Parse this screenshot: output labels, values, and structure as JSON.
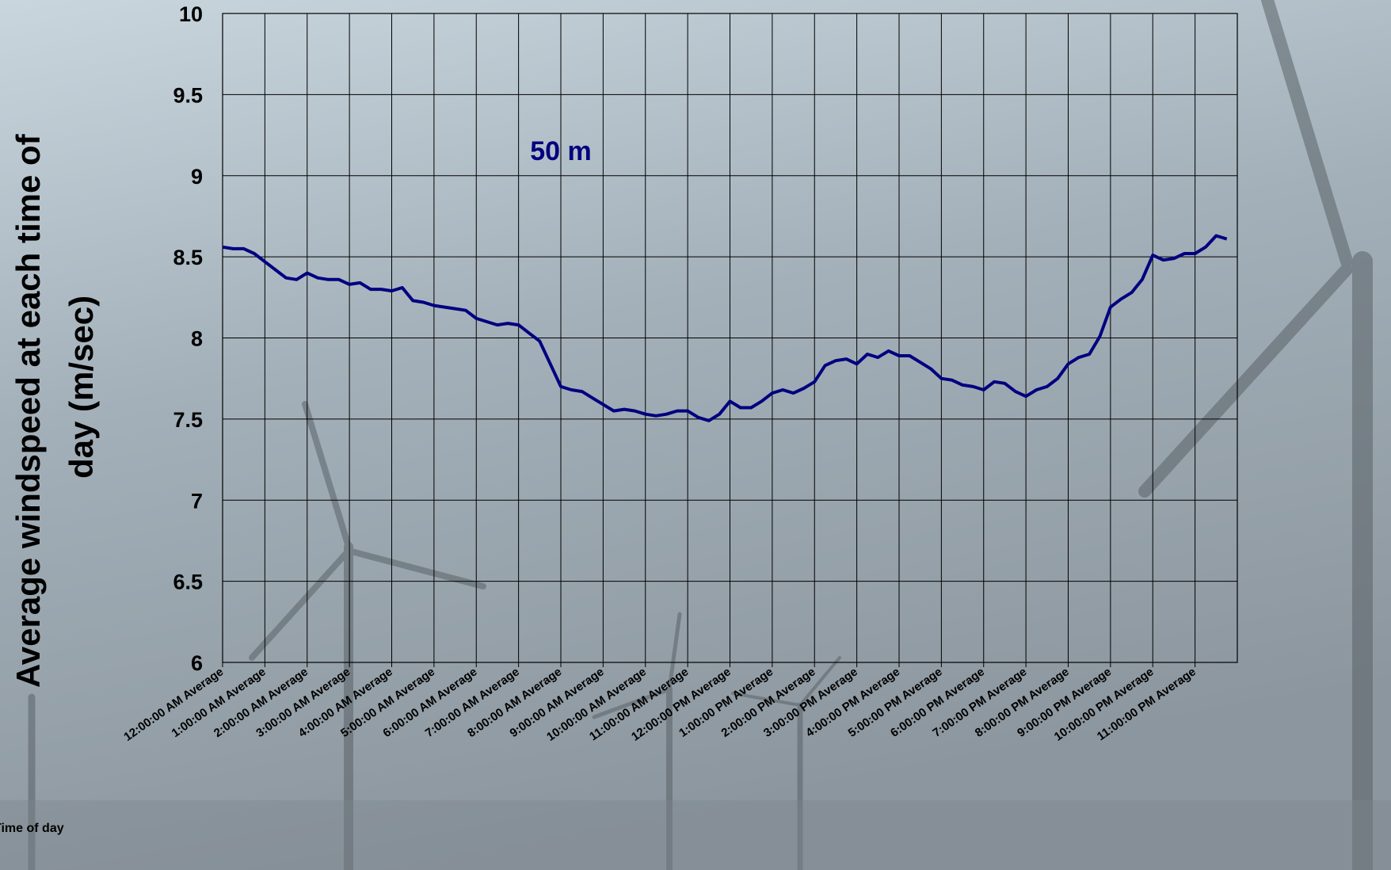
{
  "chart_data": {
    "type": "line",
    "annotation": "50 m",
    "ylabel": [
      "Average windspeed at each time of",
      "day (m/sec)"
    ],
    "xlabel": "Time of day",
    "xlim": [
      0,
      24
    ],
    "ylim": [
      6,
      10
    ],
    "yticks": [
      6,
      6.5,
      7,
      7.5,
      8,
      8.5,
      9,
      9.5,
      10
    ],
    "xticks": [
      {
        "value": 0,
        "label": "12:00:00 AM Average"
      },
      {
        "value": 1,
        "label": "1:00:00 AM Average"
      },
      {
        "value": 2,
        "label": "2:00:00 AM Average"
      },
      {
        "value": 3,
        "label": "3:00:00 AM Average"
      },
      {
        "value": 4,
        "label": "4:00:00 AM Average"
      },
      {
        "value": 5,
        "label": "5:00:00 AM Average"
      },
      {
        "value": 6,
        "label": "6:00:00 AM Average"
      },
      {
        "value": 7,
        "label": "7:00:00 AM Average"
      },
      {
        "value": 8,
        "label": "8:00:00 AM Average"
      },
      {
        "value": 9,
        "label": "9:00:00 AM Average"
      },
      {
        "value": 10,
        "label": "10:00:00 AM Average"
      },
      {
        "value": 11,
        "label": "11:00:00 AM Average"
      },
      {
        "value": 12,
        "label": "12:00:00 PM Average"
      },
      {
        "value": 13,
        "label": "1:00:00 PM Average"
      },
      {
        "value": 14,
        "label": "2:00:00 PM Average"
      },
      {
        "value": 15,
        "label": "3:00:00 PM Average"
      },
      {
        "value": 16,
        "label": "4:00:00 PM Average"
      },
      {
        "value": 17,
        "label": "5:00:00 PM Average"
      },
      {
        "value": 18,
        "label": "6:00:00 PM Average"
      },
      {
        "value": 19,
        "label": "7:00:00 PM Average"
      },
      {
        "value": 20,
        "label": "8:00:00 PM Average"
      },
      {
        "value": 21,
        "label": "9:00:00 PM Average"
      },
      {
        "value": 22,
        "label": "10:00:00 PM Average"
      },
      {
        "value": 23,
        "label": "11:00:00 PM Average"
      }
    ],
    "grid": true,
    "x": [
      0,
      0.25,
      0.5,
      0.75,
      1,
      1.25,
      1.5,
      1.75,
      2,
      2.25,
      2.5,
      2.75,
      3,
      3.25,
      3.5,
      3.75,
      4,
      4.25,
      4.5,
      4.75,
      5,
      5.25,
      5.5,
      5.75,
      6,
      6.25,
      6.5,
      6.75,
      7,
      7.25,
      7.5,
      7.75,
      8,
      8.25,
      8.5,
      8.75,
      9,
      9.25,
      9.5,
      9.75,
      10,
      10.25,
      10.5,
      10.75,
      11,
      11.25,
      11.5,
      11.75,
      12,
      12.25,
      12.5,
      12.75,
      13,
      13.25,
      13.5,
      13.75,
      14,
      14.25,
      14.5,
      14.75,
      15,
      15.25,
      15.5,
      15.75,
      16,
      16.25,
      16.5,
      16.75,
      17,
      17.25,
      17.5,
      17.75,
      18,
      18.25,
      18.5,
      18.75,
      19,
      19.25,
      19.5,
      19.75,
      20,
      20.25,
      20.5,
      20.75,
      21,
      21.25,
      21.5,
      21.75,
      22,
      22.25,
      22.5,
      22.75,
      23,
      23.25,
      23.5,
      23.75
    ],
    "series": [
      {
        "color": "#000080",
        "values": [
          8.56,
          8.55,
          8.55,
          8.52,
          8.47,
          8.42,
          8.37,
          8.36,
          8.4,
          8.37,
          8.36,
          8.36,
          8.33,
          8.34,
          8.3,
          8.3,
          8.29,
          8.31,
          8.23,
          8.22,
          8.2,
          8.19,
          8.18,
          8.17,
          8.12,
          8.1,
          8.08,
          8.09,
          8.08,
          8.03,
          7.98,
          7.84,
          7.7,
          7.68,
          7.67,
          7.63,
          7.59,
          7.55,
          7.56,
          7.55,
          7.53,
          7.52,
          7.53,
          7.55,
          7.55,
          7.51,
          7.49,
          7.53,
          7.61,
          7.57,
          7.57,
          7.61,
          7.66,
          7.68,
          7.66,
          7.69,
          7.73,
          7.83,
          7.86,
          7.87,
          7.84,
          7.9,
          7.88,
          7.92,
          7.89,
          7.89,
          7.85,
          7.81,
          7.75,
          7.74,
          7.71,
          7.7,
          7.68,
          7.73,
          7.72,
          7.67,
          7.64,
          7.68,
          7.7,
          7.75,
          7.84,
          7.88,
          7.9,
          8.01,
          8.19,
          8.24,
          8.28,
          8.36,
          8.51,
          8.48,
          8.49,
          8.52,
          8.52,
          8.56,
          8.63,
          8.61
        ]
      }
    ]
  }
}
